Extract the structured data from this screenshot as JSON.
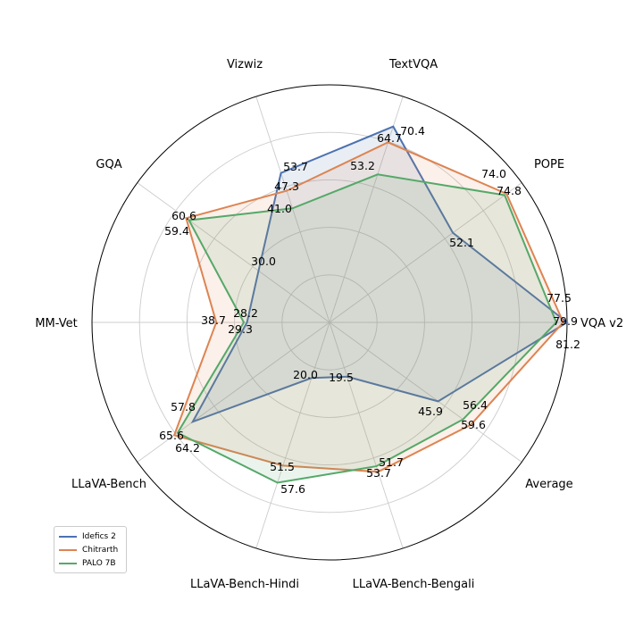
{
  "chart_data": {
    "type": "radar",
    "axes": [
      "VQA v2",
      "TextVQA",
      "Vizwiz",
      "GQA",
      "MM-Vet",
      "LLaVA-Bench",
      "LLaVA-Bench-Hindi",
      "LLaVA-Bench-Bengali",
      "Average",
      "POPE"
    ],
    "axis_order_note_free": true,
    "series": [
      {
        "name": "Idefics 2",
        "color": "#4c72b0",
        "values": {
          "VQA v2": 81.2,
          "POPE": 52.1,
          "TextVQA": 70.4,
          "Vizwiz": 53.7,
          "GQA": 30.0,
          "MM-Vet": 28.2,
          "LLaVA-Bench": 57.8,
          "LLaVA-Bench-Hindi": 20.0,
          "LLaVA-Bench-Bengali": 19.5,
          "Average": 45.9
        }
      },
      {
        "name": "Chitrarth",
        "color": "#dd8452",
        "values": {
          "VQA v2": 79.9,
          "POPE": 74.8,
          "TextVQA": 64.7,
          "Vizwiz": 47.3,
          "GQA": 60.6,
          "MM-Vet": 38.7,
          "LLaVA-Bench": 65.6,
          "LLaVA-Bench-Hindi": 51.5,
          "LLaVA-Bench-Bengali": 53.7,
          "Average": 59.6
        }
      },
      {
        "name": "PALO 7B",
        "color": "#55a868",
        "values": {
          "VQA v2": 77.5,
          "POPE": 74.0,
          "TextVQA": 53.2,
          "Vizwiz": 41.0,
          "GQA": 59.4,
          "MM-Vet": 29.3,
          "LLaVA-Bench": 64.2,
          "LLaVA-Bench-Hindi": 57.6,
          "LLaVA-Bench-Bengali": 51.7,
          "Average": 56.4
        }
      }
    ],
    "grid": true,
    "legend_position": "bottom-left"
  },
  "value_labels": [
    {
      "text": "70.4"
    },
    {
      "text": "64.7"
    },
    {
      "text": "53.2"
    },
    {
      "text": "74.0"
    },
    {
      "text": "74.8"
    },
    {
      "text": "52.1"
    },
    {
      "text": "77.5"
    },
    {
      "text": "79.9"
    },
    {
      "text": "81.2"
    },
    {
      "text": "53.7"
    },
    {
      "text": "47.3"
    },
    {
      "text": "41.0"
    },
    {
      "text": "60.6"
    },
    {
      "text": "59.4"
    },
    {
      "text": "30.0"
    },
    {
      "text": "28.2"
    },
    {
      "text": "38.7"
    },
    {
      "text": "29.3"
    },
    {
      "text": "57.8"
    },
    {
      "text": "65.6"
    },
    {
      "text": "64.2"
    },
    {
      "text": "20.0"
    },
    {
      "text": "19.5"
    },
    {
      "text": "51.5"
    },
    {
      "text": "57.6"
    },
    {
      "text": "51.7"
    },
    {
      "text": "53.7"
    },
    {
      "text": "56.4"
    },
    {
      "text": "45.9"
    },
    {
      "text": "59.6"
    }
  ]
}
